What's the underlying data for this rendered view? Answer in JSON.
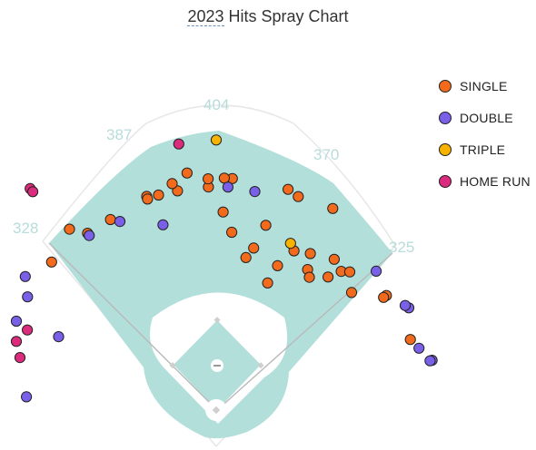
{
  "chart_data": {
    "type": "scatter",
    "title_year": "2023",
    "title_rest": " Hits Spray Chart",
    "field_distances": [
      "404",
      "387",
      "370",
      "328",
      "325"
    ],
    "colors": {
      "SINGLE": "#f26a1b",
      "DOUBLE": "#7a60e8",
      "TRIPLE": "#f7b300",
      "HOME RUN": "#dc2a7d",
      "grass": "#b3dfdb",
      "dirt": "#ffffff"
    },
    "legend": [
      "SINGLE",
      "DOUBLE",
      "TRIPLE",
      "HOME RUN"
    ],
    "legend_placement": "right",
    "series": [
      {
        "name": "SINGLE",
        "points": [
          [
            22,
            202
          ],
          [
            33,
            247
          ],
          [
            11,
            229
          ],
          [
            13,
            245
          ],
          [
            23,
            231
          ],
          [
            35,
            239
          ],
          [
            49,
            264
          ],
          [
            40,
            256
          ],
          [
            26,
            261
          ],
          [
            5,
            263
          ],
          [
            2,
            292
          ],
          [
            42,
            275
          ],
          [
            56,
            302
          ],
          [
            15,
            282
          ],
          [
            31,
            269
          ],
          [
            38,
            282
          ],
          [
            44,
            283
          ],
          [
            56,
            297
          ],
          [
            70,
            304
          ],
          [
            30,
            343
          ],
          [
            21,
            337
          ],
          [
            18,
            342
          ],
          [
            4,
            342
          ],
          [
            2,
            342
          ],
          [
            -10,
            328
          ],
          [
            -15,
            328
          ],
          [
            -2,
            329
          ],
          [
            -2,
            341
          ],
          [
            -11,
            340
          ],
          [
            -18,
            331
          ],
          [
            -7,
            352
          ],
          [
            -18,
            327
          ],
          [
            -29,
            321
          ],
          [
            -36,
            322
          ],
          [
            -48,
            326
          ],
          [
            -39,
            343
          ]
        ]
      },
      {
        "name": "DOUBLE",
        "points": [
          [
            -59,
            324
          ],
          [
            -55,
            343
          ],
          [
            -82,
            336
          ],
          [
            -66,
            322
          ],
          [
            -16,
            284
          ],
          [
            -27,
            312
          ],
          [
            -86,
            280
          ],
          [
            -36,
            318
          ],
          [
            -65,
            256
          ],
          [
            3,
            329
          ],
          [
            10,
            327
          ],
          [
            49,
            312
          ],
          [
            62,
            321
          ],
          [
            61,
            318
          ],
          [
            73,
            312
          ],
          [
            77,
            326
          ],
          [
            77,
            323
          ]
        ]
      },
      {
        "name": "TRIPLE",
        "points": [
          [
            0,
            398
          ],
          [
            24,
            269
          ]
        ]
      },
      {
        "name": "HOME RUN",
        "points": [
          [
            -40,
            426
          ],
          [
            -40,
            420
          ],
          [
            -71,
            311
          ],
          [
            -75,
            299
          ],
          [
            -67,
            302
          ],
          [
            -8,
            396
          ]
        ]
      }
    ]
  }
}
